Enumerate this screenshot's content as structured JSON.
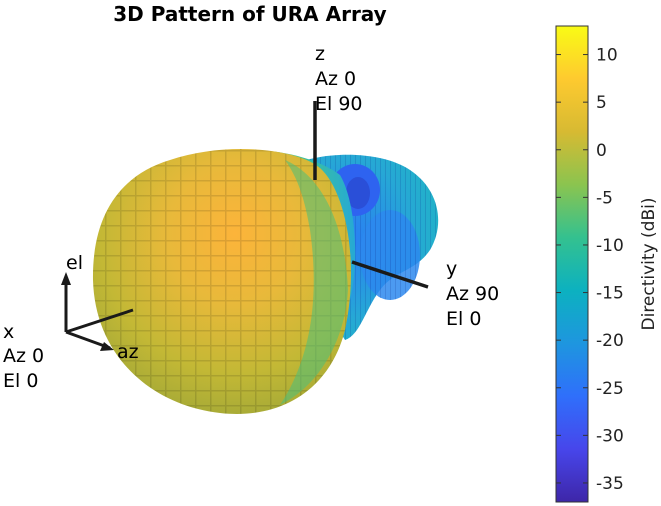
{
  "title": "3D Pattern of URA Array",
  "axes_labels": {
    "z": [
      "z",
      "Az 0",
      "El 90"
    ],
    "y": [
      "y",
      "Az 90",
      "El 0"
    ],
    "x": [
      "x",
      "Az 0",
      "El 0"
    ],
    "el": "el",
    "az": "az"
  },
  "colorbar": {
    "label": "Directivity (dBi)",
    "min": -37,
    "max": 13,
    "ticks": [
      10,
      5,
      0,
      -5,
      -10,
      -15,
      -20,
      -25,
      -30,
      -35
    ],
    "colormap": [
      "#3e26a8",
      "#4746eb",
      "#2f6ffb",
      "#1e96df",
      "#0cb1c0",
      "#34c18f",
      "#8bc44f",
      "#d7ba32",
      "#feca2f",
      "#f9fb15"
    ]
  },
  "chart_data": {
    "type": "surface",
    "title": "3D Pattern of URA Array",
    "colorbar_label": "Directivity (dBi)",
    "value_range": [
      -37,
      13
    ],
    "colorbar_ticks": [
      10,
      5,
      0,
      -5,
      -10,
      -15,
      -20,
      -25,
      -30,
      -35
    ],
    "main_lobe_peak_dBi": 12,
    "axes": [
      "x (Az 0, El 0)",
      "y (Az 90, El 0)",
      "z (Az 0, El 90)"
    ]
  }
}
